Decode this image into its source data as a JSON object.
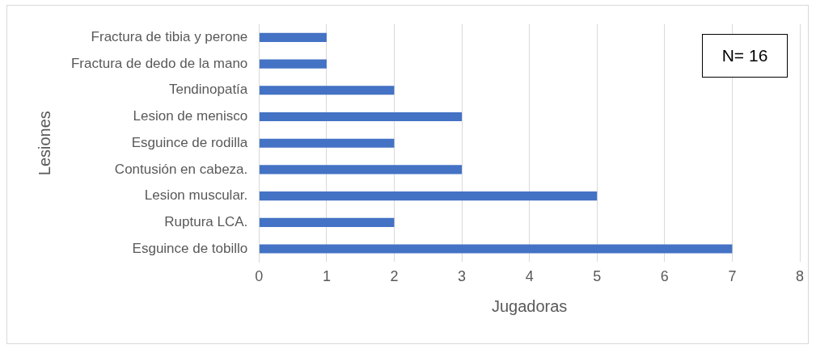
{
  "chart_data": {
    "type": "bar",
    "orientation": "horizontal",
    "xlabel": "Jugadoras",
    "ylabel": "Lesiones",
    "categories": [
      "Fractura de tibia y perone",
      "Fractura de dedo de la mano",
      "Tendinopatía",
      "Lesion de menisco",
      "Esguince de rodilla",
      "Contusión en cabeza.",
      "Lesion muscular.",
      "Ruptura LCA.",
      "Esguince de tobillo"
    ],
    "values": [
      1,
      1,
      2,
      3,
      2,
      3,
      5,
      2,
      7
    ],
    "color": "#4472c4",
    "xlim": [
      0,
      8
    ],
    "xticks": [
      0,
      1,
      2,
      3,
      4,
      5,
      6,
      7,
      8
    ],
    "grid": "x",
    "legend": false,
    "annotations": [
      "N= 16"
    ]
  }
}
